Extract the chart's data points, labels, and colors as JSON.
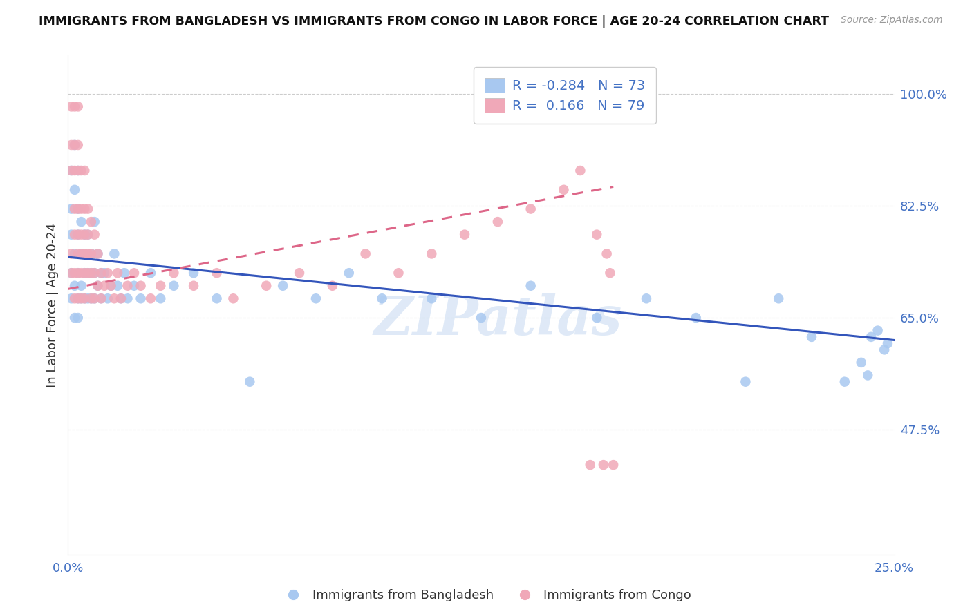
{
  "title": "IMMIGRANTS FROM BANGLADESH VS IMMIGRANTS FROM CONGO IN LABOR FORCE | AGE 20-24 CORRELATION CHART",
  "source": "Source: ZipAtlas.com",
  "ylabel": "In Labor Force | Age 20-24",
  "xlim": [
    0.0,
    0.25
  ],
  "ylim": [
    0.28,
    1.06
  ],
  "xtick_positions": [
    0.0,
    0.05,
    0.1,
    0.15,
    0.2,
    0.25
  ],
  "xticklabels": [
    "0.0%",
    "",
    "",
    "",
    "",
    "25.0%"
  ],
  "yticks_right": [
    1.0,
    0.825,
    0.65,
    0.475
  ],
  "ytick_right_labels": [
    "100.0%",
    "82.5%",
    "65.0%",
    "47.5%"
  ],
  "grid_color": "#cccccc",
  "blue_color": "#a8c8f0",
  "pink_color": "#f0a8b8",
  "blue_line_color": "#3355bb",
  "pink_line_color": "#dd6688",
  "axis_color": "#4472c4",
  "r_blue": -0.284,
  "n_blue": 73,
  "r_pink": 0.166,
  "n_pink": 79,
  "watermark": "ZIPatlas",
  "legend_label_blue": "Immigrants from Bangladesh",
  "legend_label_pink": "Immigrants from Congo",
  "blue_x": [
    0.001,
    0.001,
    0.001,
    0.001,
    0.001,
    0.002,
    0.002,
    0.002,
    0.002,
    0.002,
    0.003,
    0.003,
    0.003,
    0.003,
    0.003,
    0.003,
    0.004,
    0.004,
    0.004,
    0.004,
    0.005,
    0.005,
    0.005,
    0.005,
    0.006,
    0.006,
    0.006,
    0.007,
    0.007,
    0.007,
    0.008,
    0.008,
    0.008,
    0.009,
    0.009,
    0.01,
    0.01,
    0.011,
    0.012,
    0.013,
    0.014,
    0.015,
    0.016,
    0.017,
    0.018,
    0.02,
    0.022,
    0.025,
    0.028,
    0.032,
    0.038,
    0.045,
    0.055,
    0.065,
    0.075,
    0.085,
    0.095,
    0.11,
    0.125,
    0.14,
    0.16,
    0.175,
    0.19,
    0.205,
    0.215,
    0.225,
    0.235,
    0.24,
    0.242,
    0.243,
    0.245,
    0.247,
    0.248
  ],
  "blue_y": [
    0.78,
    0.72,
    0.68,
    0.82,
    0.88,
    0.75,
    0.85,
    0.7,
    0.65,
    0.92,
    0.78,
    0.82,
    0.72,
    0.68,
    0.65,
    0.88,
    0.75,
    0.7,
    0.8,
    0.68,
    0.78,
    0.72,
    0.68,
    0.75,
    0.72,
    0.78,
    0.68,
    0.75,
    0.72,
    0.68,
    0.8,
    0.72,
    0.68,
    0.75,
    0.7,
    0.72,
    0.68,
    0.72,
    0.68,
    0.7,
    0.75,
    0.7,
    0.68,
    0.72,
    0.68,
    0.7,
    0.68,
    0.72,
    0.68,
    0.7,
    0.72,
    0.68,
    0.55,
    0.7,
    0.68,
    0.72,
    0.68,
    0.68,
    0.65,
    0.7,
    0.65,
    0.68,
    0.65,
    0.55,
    0.68,
    0.62,
    0.55,
    0.58,
    0.56,
    0.62,
    0.63,
    0.6,
    0.61
  ],
  "pink_x": [
    0.001,
    0.001,
    0.001,
    0.001,
    0.001,
    0.002,
    0.002,
    0.002,
    0.002,
    0.002,
    0.002,
    0.002,
    0.003,
    0.003,
    0.003,
    0.003,
    0.003,
    0.003,
    0.003,
    0.003,
    0.004,
    0.004,
    0.004,
    0.004,
    0.004,
    0.004,
    0.005,
    0.005,
    0.005,
    0.005,
    0.005,
    0.005,
    0.006,
    0.006,
    0.006,
    0.006,
    0.007,
    0.007,
    0.007,
    0.007,
    0.008,
    0.008,
    0.008,
    0.009,
    0.009,
    0.01,
    0.01,
    0.011,
    0.012,
    0.013,
    0.014,
    0.015,
    0.016,
    0.018,
    0.02,
    0.022,
    0.025,
    0.028,
    0.032,
    0.038,
    0.045,
    0.05,
    0.06,
    0.07,
    0.08,
    0.09,
    0.1,
    0.11,
    0.12,
    0.13,
    0.14,
    0.15,
    0.155,
    0.158,
    0.16,
    0.162,
    0.163,
    0.164,
    0.165
  ],
  "pink_y": [
    0.98,
    0.92,
    0.75,
    0.88,
    0.72,
    0.98,
    0.92,
    0.88,
    0.82,
    0.78,
    0.72,
    0.68,
    0.98,
    0.92,
    0.88,
    0.82,
    0.78,
    0.75,
    0.72,
    0.68,
    0.88,
    0.82,
    0.78,
    0.75,
    0.72,
    0.68,
    0.88,
    0.82,
    0.78,
    0.75,
    0.72,
    0.68,
    0.82,
    0.78,
    0.75,
    0.72,
    0.8,
    0.75,
    0.72,
    0.68,
    0.78,
    0.72,
    0.68,
    0.75,
    0.7,
    0.72,
    0.68,
    0.7,
    0.72,
    0.7,
    0.68,
    0.72,
    0.68,
    0.7,
    0.72,
    0.7,
    0.68,
    0.7,
    0.72,
    0.7,
    0.72,
    0.68,
    0.7,
    0.72,
    0.7,
    0.75,
    0.72,
    0.75,
    0.78,
    0.8,
    0.82,
    0.85,
    0.88,
    0.42,
    0.78,
    0.42,
    0.75,
    0.72,
    0.42
  ]
}
